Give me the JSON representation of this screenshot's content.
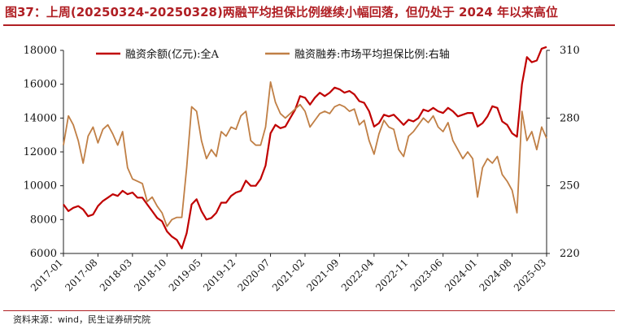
{
  "figure": {
    "title": "图37：上周(20250324-20250328)两融平均担保比例继续小幅回落，但仍处于 2024 年以来高位",
    "source": "资料来源：wind，民生证券研究院",
    "title_color": "#b01f24"
  },
  "chart_data": {
    "type": "line",
    "title": "图37：上周(20250324-20250328)两融平均担保比例继续小幅回落，但仍处于 2024 年以来高位",
    "x_ticks": [
      "2017-01",
      "2017-08",
      "2018-03",
      "2018-10",
      "2019-05",
      "2019-12",
      "2020-07",
      "2021-02",
      "2021-09",
      "2022-04",
      "2022-11",
      "2023-06",
      "2024-01",
      "2024-08",
      "2025-03"
    ],
    "x_range": [
      "2017-01",
      "2025-03"
    ],
    "y_left": {
      "ticks": [
        "6000",
        "8000",
        "10000",
        "12000",
        "14000",
        "16000",
        "18000"
      ],
      "range": [
        6000,
        18000
      ]
    },
    "y_right": {
      "ticks": [
        "220",
        "250",
        "280",
        "310"
      ],
      "range": [
        220,
        310
      ]
    },
    "grid": false,
    "legend_position": "top-center",
    "series": [
      {
        "name": "融资余额(亿元):全A",
        "axis": "left",
        "color": "#c00000",
        "points": [
          [
            "2017-01",
            8900
          ],
          [
            "2017-02",
            8500
          ],
          [
            "2017-03",
            8700
          ],
          [
            "2017-04",
            8800
          ],
          [
            "2017-05",
            8600
          ],
          [
            "2017-06",
            8200
          ],
          [
            "2017-07",
            8300
          ],
          [
            "2017-08",
            8800
          ],
          [
            "2017-09",
            9100
          ],
          [
            "2017-10",
            9300
          ],
          [
            "2017-11",
            9500
          ],
          [
            "2017-12",
            9400
          ],
          [
            "2018-01",
            9700
          ],
          [
            "2018-02",
            9500
          ],
          [
            "2018-03",
            9600
          ],
          [
            "2018-04",
            9300
          ],
          [
            "2018-05",
            9300
          ],
          [
            "2018-06",
            8900
          ],
          [
            "2018-07",
            8500
          ],
          [
            "2018-08",
            8100
          ],
          [
            "2018-09",
            7900
          ],
          [
            "2018-10",
            7300
          ],
          [
            "2018-11",
            7000
          ],
          [
            "2018-12",
            6800
          ],
          [
            "2019-01",
            6300
          ],
          [
            "2019-02",
            7200
          ],
          [
            "2019-03",
            8900
          ],
          [
            "2019-04",
            9200
          ],
          [
            "2019-05",
            8500
          ],
          [
            "2019-06",
            8000
          ],
          [
            "2019-07",
            8100
          ],
          [
            "2019-08",
            8400
          ],
          [
            "2019-09",
            9000
          ],
          [
            "2019-10",
            9000
          ],
          [
            "2019-11",
            9400
          ],
          [
            "2019-12",
            9600
          ],
          [
            "2020-01",
            9700
          ],
          [
            "2020-02",
            10300
          ],
          [
            "2020-03",
            10000
          ],
          [
            "2020-04",
            10000
          ],
          [
            "2020-05",
            10400
          ],
          [
            "2020-06",
            11200
          ],
          [
            "2020-07",
            13100
          ],
          [
            "2020-08",
            13600
          ],
          [
            "2020-09",
            13400
          ],
          [
            "2020-10",
            13500
          ],
          [
            "2020-11",
            14000
          ],
          [
            "2020-12",
            14500
          ],
          [
            "2021-01",
            15300
          ],
          [
            "2021-02",
            15200
          ],
          [
            "2021-03",
            14800
          ],
          [
            "2021-04",
            15200
          ],
          [
            "2021-05",
            15500
          ],
          [
            "2021-06",
            15300
          ],
          [
            "2021-07",
            15500
          ],
          [
            "2021-08",
            15800
          ],
          [
            "2021-09",
            15700
          ],
          [
            "2021-10",
            15500
          ],
          [
            "2021-11",
            15600
          ],
          [
            "2021-12",
            15400
          ],
          [
            "2022-01",
            15000
          ],
          [
            "2022-02",
            14900
          ],
          [
            "2022-03",
            14400
          ],
          [
            "2022-04",
            13500
          ],
          [
            "2022-05",
            13700
          ],
          [
            "2022-06",
            14200
          ],
          [
            "2022-07",
            14100
          ],
          [
            "2022-08",
            14200
          ],
          [
            "2022-09",
            13900
          ],
          [
            "2022-10",
            13600
          ],
          [
            "2022-11",
            13900
          ],
          [
            "2022-12",
            13800
          ],
          [
            "2023-01",
            14000
          ],
          [
            "2023-02",
            14500
          ],
          [
            "2023-03",
            14400
          ],
          [
            "2023-04",
            14600
          ],
          [
            "2023-05",
            14400
          ],
          [
            "2023-06",
            14300
          ],
          [
            "2023-07",
            14600
          ],
          [
            "2023-08",
            14400
          ],
          [
            "2023-09",
            14100
          ],
          [
            "2023-10",
            14200
          ],
          [
            "2023-11",
            14300
          ],
          [
            "2023-12",
            14300
          ],
          [
            "2024-01",
            13500
          ],
          [
            "2024-02",
            13700
          ],
          [
            "2024-03",
            14100
          ],
          [
            "2024-04",
            14700
          ],
          [
            "2024-05",
            14600
          ],
          [
            "2024-06",
            13800
          ],
          [
            "2024-07",
            13600
          ],
          [
            "2024-08",
            13100
          ],
          [
            "2024-09",
            12900
          ],
          [
            "2024-10",
            16000
          ],
          [
            "2024-11",
            17600
          ],
          [
            "2024-12",
            17300
          ],
          [
            "2025-01",
            17400
          ],
          [
            "2025-02",
            18100
          ],
          [
            "2025-03",
            18200
          ]
        ]
      },
      {
        "name": "融资融券:市场平均担保比例:右轴",
        "axis": "right",
        "color": "#c07f45",
        "points": [
          [
            "2017-01",
            268
          ],
          [
            "2017-02",
            281
          ],
          [
            "2017-03",
            277
          ],
          [
            "2017-04",
            270
          ],
          [
            "2017-05",
            260
          ],
          [
            "2017-06",
            272
          ],
          [
            "2017-07",
            276
          ],
          [
            "2017-08",
            269
          ],
          [
            "2017-09",
            275
          ],
          [
            "2017-10",
            277
          ],
          [
            "2017-11",
            273
          ],
          [
            "2017-12",
            268
          ],
          [
            "2018-01",
            274
          ],
          [
            "2018-02",
            258
          ],
          [
            "2018-03",
            253
          ],
          [
            "2018-04",
            252
          ],
          [
            "2018-05",
            251
          ],
          [
            "2018-06",
            243
          ],
          [
            "2018-07",
            245
          ],
          [
            "2018-08",
            241
          ],
          [
            "2018-09",
            238
          ],
          [
            "2018-10",
            232
          ],
          [
            "2018-11",
            235
          ],
          [
            "2018-12",
            236
          ],
          [
            "2019-01",
            236
          ],
          [
            "2019-02",
            258
          ],
          [
            "2019-03",
            285
          ],
          [
            "2019-04",
            283
          ],
          [
            "2019-05",
            270
          ],
          [
            "2019-06",
            262
          ],
          [
            "2019-07",
            266
          ],
          [
            "2019-08",
            263
          ],
          [
            "2019-09",
            274
          ],
          [
            "2019-10",
            272
          ],
          [
            "2019-11",
            276
          ],
          [
            "2019-12",
            275
          ],
          [
            "2020-01",
            281
          ],
          [
            "2020-02",
            283
          ],
          [
            "2020-03",
            270
          ],
          [
            "2020-04",
            268
          ],
          [
            "2020-05",
            268
          ],
          [
            "2020-06",
            276
          ],
          [
            "2020-07",
            296
          ],
          [
            "2020-08",
            287
          ],
          [
            "2020-09",
            282
          ],
          [
            "2020-10",
            280
          ],
          [
            "2020-11",
            282
          ],
          [
            "2020-12",
            284
          ],
          [
            "2021-01",
            286
          ],
          [
            "2021-02",
            283
          ],
          [
            "2021-03",
            276
          ],
          [
            "2021-04",
            279
          ],
          [
            "2021-05",
            282
          ],
          [
            "2021-06",
            283
          ],
          [
            "2021-07",
            282
          ],
          [
            "2021-08",
            285
          ],
          [
            "2021-09",
            286
          ],
          [
            "2021-10",
            285
          ],
          [
            "2021-11",
            283
          ],
          [
            "2021-12",
            284
          ],
          [
            "2022-01",
            277
          ],
          [
            "2022-02",
            279
          ],
          [
            "2022-03",
            270
          ],
          [
            "2022-04",
            264
          ],
          [
            "2022-05",
            273
          ],
          [
            "2022-06",
            279
          ],
          [
            "2022-07",
            276
          ],
          [
            "2022-08",
            275
          ],
          [
            "2022-09",
            266
          ],
          [
            "2022-10",
            263
          ],
          [
            "2022-11",
            272
          ],
          [
            "2022-12",
            274
          ],
          [
            "2023-01",
            277
          ],
          [
            "2023-02",
            280
          ],
          [
            "2023-03",
            278
          ],
          [
            "2023-04",
            281
          ],
          [
            "2023-05",
            276
          ],
          [
            "2023-06",
            274
          ],
          [
            "2023-07",
            278
          ],
          [
            "2023-08",
            270
          ],
          [
            "2023-09",
            266
          ],
          [
            "2023-10",
            262
          ],
          [
            "2023-11",
            265
          ],
          [
            "2023-12",
            262
          ],
          [
            "2024-01",
            245
          ],
          [
            "2024-02",
            258
          ],
          [
            "2024-03",
            262
          ],
          [
            "2024-04",
            260
          ],
          [
            "2024-05",
            263
          ],
          [
            "2024-06",
            255
          ],
          [
            "2024-07",
            252
          ],
          [
            "2024-08",
            248
          ],
          [
            "2024-09",
            238
          ],
          [
            "2024-10",
            283
          ],
          [
            "2024-11",
            270
          ],
          [
            "2024-12",
            274
          ],
          [
            "2025-01",
            266
          ],
          [
            "2025-02",
            276
          ],
          [
            "2025-03",
            271
          ]
        ]
      }
    ]
  }
}
